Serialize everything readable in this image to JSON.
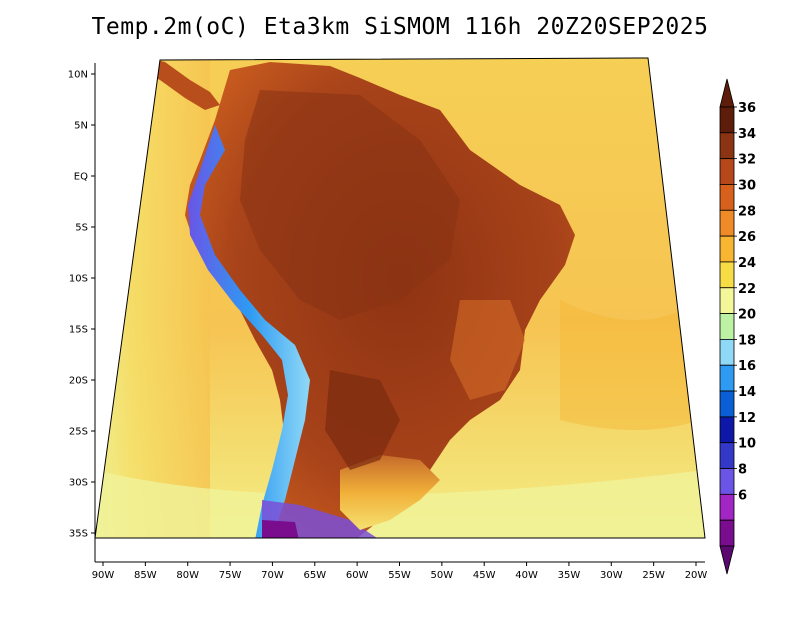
{
  "title": "Temp.2m(oC) Eta3km SiSMOM 116h 20Z20SEP2025",
  "map": {
    "variable": "2 m air temperature",
    "units": "oC",
    "region": "South America",
    "lon_labels": [
      "90W",
      "85W",
      "80W",
      "75W",
      "70W",
      "65W",
      "60W",
      "55W",
      "50W",
      "45W",
      "40W",
      "35W",
      "30W",
      "25W",
      "20W"
    ],
    "lat_labels": [
      "10N",
      "5N",
      "EQ",
      "5S",
      "10S",
      "15S",
      "20S",
      "25S",
      "30S",
      "35S"
    ],
    "lon_range": [
      -90,
      -20
    ],
    "lat_range": [
      -38,
      11
    ]
  },
  "colorbar": {
    "levels": [
      "6",
      "8",
      "10",
      "12",
      "14",
      "16",
      "18",
      "20",
      "22",
      "24",
      "26",
      "28",
      "30",
      "32",
      "34",
      "36"
    ],
    "colors": [
      "#7a0c8e",
      "#a126c3",
      "#6a55e6",
      "#3338c9",
      "#0d17a8",
      "#0a5fd6",
      "#2f9af2",
      "#8fd9f6",
      "#bdf1a4",
      "#f3f79a",
      "#f6dc45",
      "#f7b532",
      "#ee8a28",
      "#d6601c",
      "#b5471a",
      "#8b3414",
      "#5e1d0a"
    ],
    "arrow_low_color": "#5a0a6e",
    "arrow_high_color": "#5e1d0a"
  },
  "theme": {
    "ocean": "#f6c85a",
    "ocean_cool": "#f4e57a",
    "land_hot": "#9e3a16",
    "land_warm": "#d96b22"
  }
}
